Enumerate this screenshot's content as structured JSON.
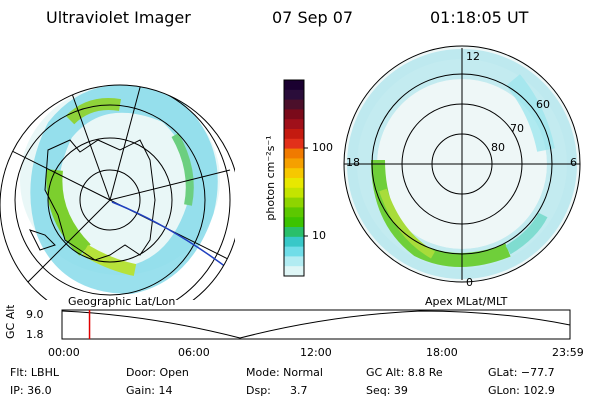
{
  "header": {
    "title": "Ultraviolet Imager",
    "date": "07 Sep 07",
    "time": "01:18:05 UT"
  },
  "left_panel": {
    "caption": "Geographic Lat/Lon"
  },
  "right_panel": {
    "caption": "Apex MLat/MLT",
    "mlt_labels": {
      "top": "12",
      "left": "18",
      "right": "6",
      "bottom": "0"
    },
    "mlat_labels": [
      "60",
      "70",
      "80"
    ]
  },
  "colorbar": {
    "unit": "photon cm⁻²s⁻¹",
    "ticks": [
      "100",
      "10"
    ],
    "colors": [
      "#1a0030",
      "#2a0d3a",
      "#4b0f2a",
      "#7a0a1a",
      "#a0101a",
      "#c41a10",
      "#e2301a",
      "#f07a00",
      "#f5a000",
      "#f6c800",
      "#e8e800",
      "#c4e400",
      "#8ed400",
      "#5cc800",
      "#3cc300",
      "#2abf6a",
      "#38c8c8",
      "#70dde8",
      "#b2ecf2",
      "#dff6f6"
    ]
  },
  "timeline": {
    "ylabel": "GC Alt",
    "y_ticks": [
      "9.0",
      "1.8"
    ],
    "x_ticks": [
      "00:00",
      "06:00",
      "12:00",
      "18:00",
      "23:59"
    ],
    "marker_time": "01:18"
  },
  "info": {
    "filter_label": "Flt: LBHL",
    "ip_label": "IP: 36.0",
    "door_label": "Door: Open",
    "gain_label": "Gain: 14",
    "mode_label": "Mode: Normal",
    "dsp_label": "Dsp:",
    "dsp_value": "3.7",
    "gcalt_label": "GC Alt: 8.8 Re",
    "seq_label": "Seq: 39",
    "glat_label": "GLat: −77.7",
    "glon_label": "GLon: 102.9"
  }
}
